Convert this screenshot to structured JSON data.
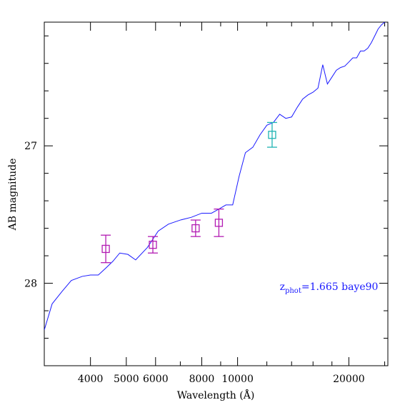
{
  "chart_data": {
    "type": "line",
    "title": "",
    "xlabel": "Wavelength (Å)",
    "ylabel": "AB magnitude",
    "x_scale": "log",
    "y_inverted": true,
    "xlim": [
      3000,
      25500
    ],
    "ylim": [
      28.6,
      26.1
    ],
    "x_ticks_major": [
      4000,
      5000,
      6000,
      8000,
      10000,
      20000
    ],
    "x_tick_labels": [
      "4000",
      "5000",
      "6000",
      "8000",
      "10000",
      "20000"
    ],
    "x_ticks_minor": [
      3000,
      7000,
      9000,
      12000,
      14000,
      16000,
      18000,
      25000
    ],
    "y_ticks_major": [
      27,
      28
    ],
    "y_tick_labels": [
      "27",
      "28"
    ],
    "y_ticks_minor": [
      26.2,
      26.4,
      26.6,
      26.8,
      27.2,
      27.4,
      27.6,
      27.8,
      28.2,
      28.4
    ],
    "grid": false,
    "annotation": {
      "prefix": "z",
      "subscript": "phot",
      "text": "=1.665 baye90",
      "color": "#1a1aff",
      "x": 13000,
      "y": 28.05
    },
    "series": [
      {
        "kind": "line",
        "color": "#1a1aff",
        "x": [
          3000,
          3150,
          3350,
          3550,
          3800,
          4000,
          4200,
          4400,
          4600,
          4800,
          5050,
          5300,
          5700,
          6100,
          6500,
          7000,
          7500,
          8000,
          8500,
          8900,
          9300,
          9700,
          10100,
          10500,
          11000,
          11500,
          12000,
          12500,
          13000,
          13500,
          14000,
          14500,
          15000,
          15500,
          16000,
          16500,
          17000,
          17500,
          18000,
          18500,
          19000,
          19500,
          20000,
          20500,
          21000,
          21500,
          22000,
          22500,
          23000,
          23500,
          24000,
          24500,
          25000,
          25500
        ],
        "y": [
          28.34,
          28.15,
          28.06,
          27.98,
          27.95,
          27.94,
          27.94,
          27.89,
          27.84,
          27.78,
          27.79,
          27.83,
          27.74,
          27.62,
          27.57,
          27.54,
          27.52,
          27.49,
          27.49,
          27.46,
          27.43,
          27.43,
          27.22,
          27.05,
          27.01,
          26.92,
          26.85,
          26.83,
          26.77,
          26.8,
          26.79,
          26.72,
          26.66,
          26.63,
          26.61,
          26.58,
          26.41,
          26.55,
          26.5,
          26.45,
          26.43,
          26.42,
          26.39,
          26.36,
          26.36,
          26.31,
          26.31,
          26.29,
          26.25,
          26.2,
          26.15,
          26.12,
          26.1,
          26.09
        ]
      },
      {
        "kind": "errorbar",
        "color": "#b31bb3",
        "points": [
          {
            "x": 4400,
            "y": 27.75,
            "yerr": 0.1
          },
          {
            "x": 5900,
            "y": 27.72,
            "yerr": 0.06
          },
          {
            "x": 7700,
            "y": 27.6,
            "yerr": 0.06
          },
          {
            "x": 8900,
            "y": 27.56,
            "yerr": 0.1
          }
        ]
      },
      {
        "kind": "errorbar",
        "color": "#1fb3b3",
        "points": [
          {
            "x": 12400,
            "y": 26.92,
            "yerr": 0.09
          }
        ]
      }
    ]
  }
}
